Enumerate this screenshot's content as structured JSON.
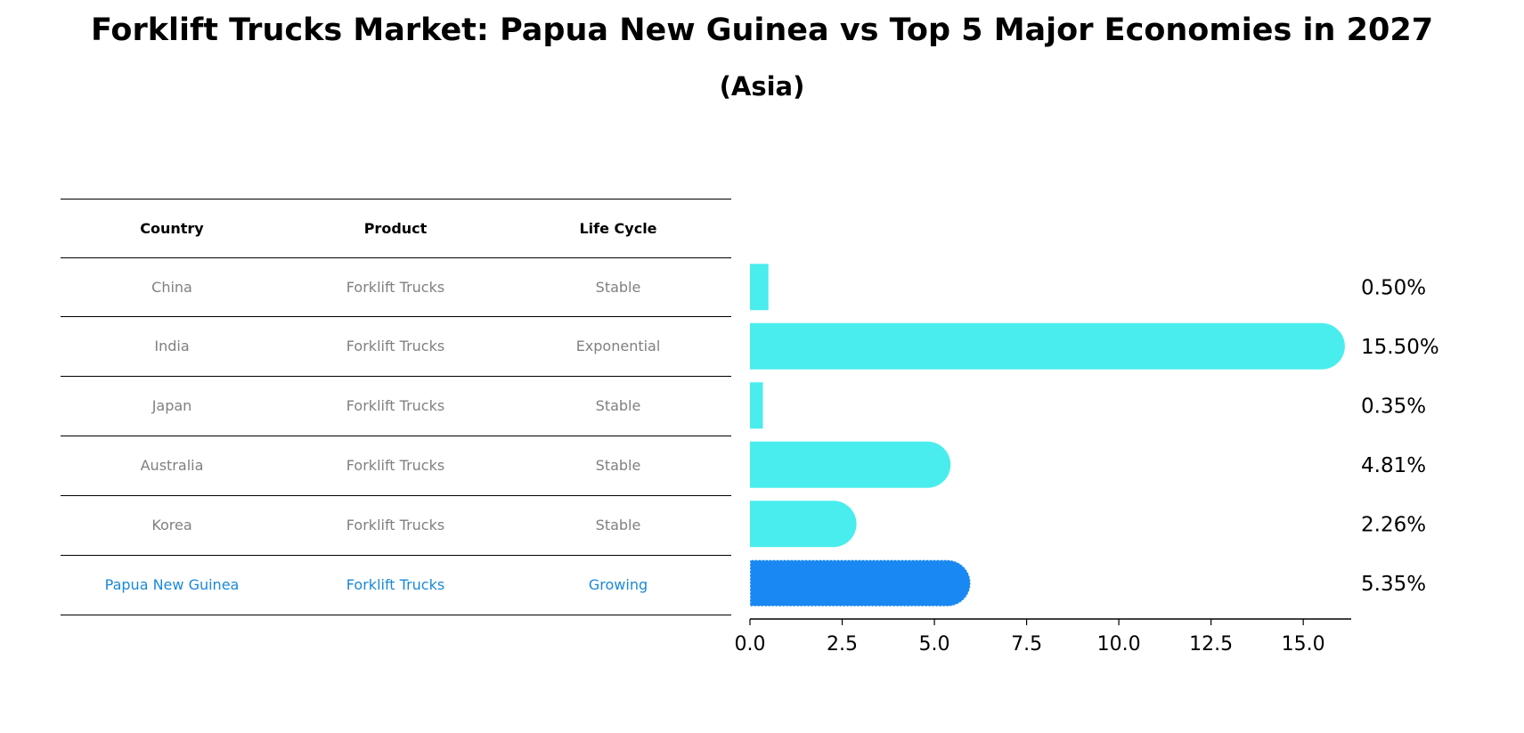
{
  "title": "Forklift Trucks Market: Papua New Guinea vs Top 5 Major Economies in 2027",
  "subtitle": "(Asia)",
  "table": {
    "headers": [
      "Country",
      "Product",
      "Life Cycle"
    ],
    "rows": [
      {
        "country": "China",
        "product": "Forklift Trucks",
        "life_cycle": "Stable"
      },
      {
        "country": "India",
        "product": "Forklift Trucks",
        "life_cycle": "Exponential"
      },
      {
        "country": "Japan",
        "product": "Forklift Trucks",
        "life_cycle": "Stable"
      },
      {
        "country": "Australia",
        "product": "Forklift Trucks",
        "life_cycle": "Stable"
      },
      {
        "country": "Korea",
        "product": "Forklift Trucks",
        "life_cycle": "Stable"
      },
      {
        "country": "Papua New Guinea",
        "product": "Forklift Trucks",
        "life_cycle": "Growing"
      }
    ]
  },
  "colors": {
    "bar": "#4aeded",
    "highlight_bar": "#1a88f2",
    "highlight_text": "#1a88d8",
    "muted_text": "#808080"
  },
  "chart_data": {
    "type": "bar",
    "orientation": "horizontal",
    "title": "Forklift Trucks Market: Papua New Guinea vs Top 5 Major Economies in 2027",
    "subtitle": "(Asia)",
    "categories": [
      "China",
      "India",
      "Japan",
      "Australia",
      "Korea",
      "Papua New Guinea"
    ],
    "values": [
      0.5,
      15.5,
      0.35,
      4.81,
      2.26,
      5.35
    ],
    "labels": [
      "0.50%",
      "15.50%",
      "0.35%",
      "4.81%",
      "2.26%",
      "5.35%"
    ],
    "highlight": "Papua New Guinea",
    "xlim": [
      0,
      16.3
    ],
    "xticks": [
      0,
      2.5,
      5,
      7.5,
      10,
      12.5,
      15
    ],
    "xtick_labels": [
      "0.0",
      "2.5",
      "5.0",
      "7.5",
      "10.0",
      "12.5",
      "15.0"
    ],
    "xlabel": "",
    "ylabel": "",
    "grid": false
  }
}
